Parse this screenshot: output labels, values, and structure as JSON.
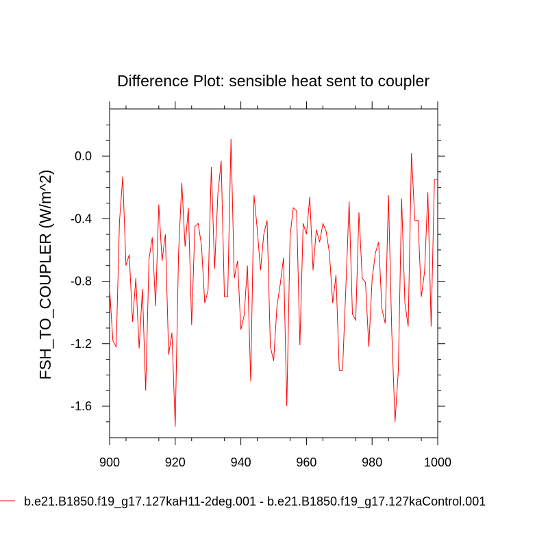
{
  "chart_data": {
    "type": "line",
    "title": "Difference Plot: sensible heat sent to coupler",
    "xlabel": "",
    "ylabel": "FSH_TO_COUPLER  (W/m^2)",
    "xlim": [
      900,
      1000
    ],
    "ylim": [
      -1.8,
      0.3
    ],
    "x_ticks": [
      900,
      920,
      940,
      960,
      980,
      1000
    ],
    "x_tick_labels": [
      "900",
      "920",
      "940",
      "960",
      "980",
      "1000"
    ],
    "y_ticks": [
      0.0,
      -0.4,
      -0.8,
      -1.2,
      -1.6
    ],
    "y_tick_labels": [
      "0.0",
      "-0.4",
      "-0.8",
      "-1.2",
      "-1.6"
    ],
    "grid": false,
    "legend_position": "bottom",
    "series": [
      {
        "name": "b.e21.B1850.f19_g17.127kaH11-2deg.001 - b.e21.B1850.f19_g17.127kaControl.001",
        "color": "#ff0000",
        "x": [
          900,
          901,
          902,
          903,
          904,
          905,
          906,
          907,
          908,
          909,
          910,
          911,
          912,
          913,
          914,
          915,
          916,
          917,
          918,
          919,
          920,
          921,
          922,
          923,
          924,
          925,
          926,
          927,
          928,
          929,
          930,
          931,
          932,
          933,
          934,
          935,
          936,
          937,
          938,
          939,
          940,
          941,
          942,
          943,
          944,
          945,
          946,
          947,
          948,
          949,
          950,
          951,
          952,
          953,
          954,
          955,
          956,
          957,
          958,
          959,
          960,
          961,
          962,
          963,
          964,
          965,
          966,
          967,
          968,
          969,
          970,
          971,
          972,
          973,
          974,
          975,
          976,
          977,
          978,
          979,
          980,
          981,
          982,
          983,
          984,
          985,
          986,
          987,
          988,
          989,
          990,
          991,
          992,
          993,
          994,
          995,
          996,
          997,
          998,
          999,
          1000
        ],
        "values": [
          -0.85,
          -1.18,
          -1.22,
          -0.42,
          -0.13,
          -0.7,
          -0.63,
          -1.06,
          -0.78,
          -1.23,
          -0.85,
          -1.5,
          -0.66,
          -0.52,
          -0.96,
          -0.31,
          -0.67,
          -0.5,
          -1.27,
          -1.13,
          -1.73,
          -0.63,
          -0.17,
          -0.58,
          -0.33,
          -1.08,
          -0.45,
          -0.43,
          -0.57,
          -0.94,
          -0.86,
          -0.07,
          -0.72,
          -0.24,
          -0.03,
          -0.9,
          -0.9,
          0.11,
          -0.78,
          -0.67,
          -1.11,
          -1.02,
          -0.7,
          -1.44,
          -0.25,
          -0.47,
          -0.73,
          -0.5,
          -0.41,
          -1.22,
          -1.31,
          -0.96,
          -0.82,
          -0.65,
          -1.6,
          -0.51,
          -0.33,
          -0.35,
          -1.21,
          -0.43,
          -0.5,
          -0.26,
          -0.73,
          -0.47,
          -0.55,
          -0.43,
          -0.48,
          -0.62,
          -0.94,
          -0.76,
          -1.37,
          -1.37,
          -0.84,
          -0.29,
          -1.01,
          -1.05,
          -0.36,
          -0.78,
          -0.81,
          -1.22,
          -0.79,
          -0.62,
          -0.55,
          -0.98,
          -1.07,
          -0.25,
          -1.12,
          -1.7,
          -1.37,
          -0.27,
          -0.94,
          -1.09,
          0.02,
          -0.41,
          -0.41,
          -0.9,
          -0.74,
          -0.23,
          -1.09,
          -0.15,
          -0.15
        ]
      }
    ]
  }
}
